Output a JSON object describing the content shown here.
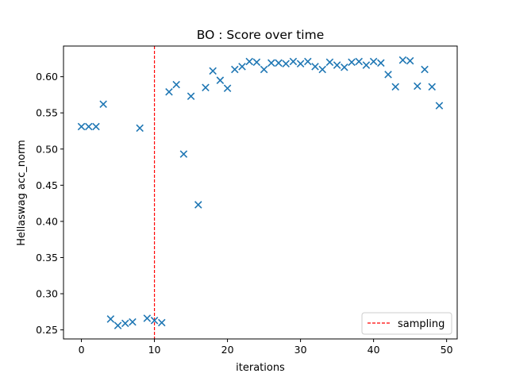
{
  "chart_data": {
    "type": "scatter",
    "title": "BO : Score over time",
    "xlabel": "iterations",
    "ylabel": "Hellaswag acc_norm",
    "xlim": [
      -2.45,
      51.45
    ],
    "ylim": [
      0.2375,
      0.6424
    ],
    "xticks": [
      0,
      10,
      20,
      30,
      40,
      50
    ],
    "xtick_labels": [
      "0",
      "10",
      "20",
      "30",
      "40",
      "50"
    ],
    "yticks": [
      0.25,
      0.3,
      0.35,
      0.4,
      0.45,
      0.5,
      0.55,
      0.6
    ],
    "ytick_labels": [
      "0.25",
      "0.30",
      "0.35",
      "0.40",
      "0.45",
      "0.50",
      "0.55",
      "0.60"
    ],
    "grid": false,
    "legend_position": "bottom-right",
    "marker": "x",
    "marker_color": "#1f77b4",
    "x": [
      0,
      1,
      2,
      3,
      4,
      5,
      6,
      7,
      8,
      9,
      10,
      11,
      12,
      13,
      14,
      15,
      16,
      17,
      18,
      19,
      20,
      21,
      22,
      23,
      24,
      25,
      26,
      27,
      28,
      29,
      30,
      31,
      32,
      33,
      34,
      35,
      36,
      37,
      38,
      39,
      40,
      41,
      42,
      43,
      44,
      45,
      46,
      47,
      48,
      49
    ],
    "y": [
      0.531,
      0.531,
      0.531,
      0.562,
      0.265,
      0.256,
      0.259,
      0.261,
      0.529,
      0.266,
      0.263,
      0.26,
      0.579,
      0.589,
      0.493,
      0.573,
      0.423,
      0.585,
      0.608,
      0.595,
      0.584,
      0.61,
      0.614,
      0.621,
      0.62,
      0.61,
      0.619,
      0.619,
      0.618,
      0.621,
      0.618,
      0.621,
      0.614,
      0.61,
      0.62,
      0.616,
      0.613,
      0.62,
      0.621,
      0.616,
      0.621,
      0.619,
      0.603,
      0.586,
      0.623,
      0.622,
      0.587,
      0.61,
      0.586,
      0.56
    ],
    "vline": {
      "x": 10,
      "color": "#ff0000",
      "style": "dashed",
      "label": "sampling"
    }
  }
}
